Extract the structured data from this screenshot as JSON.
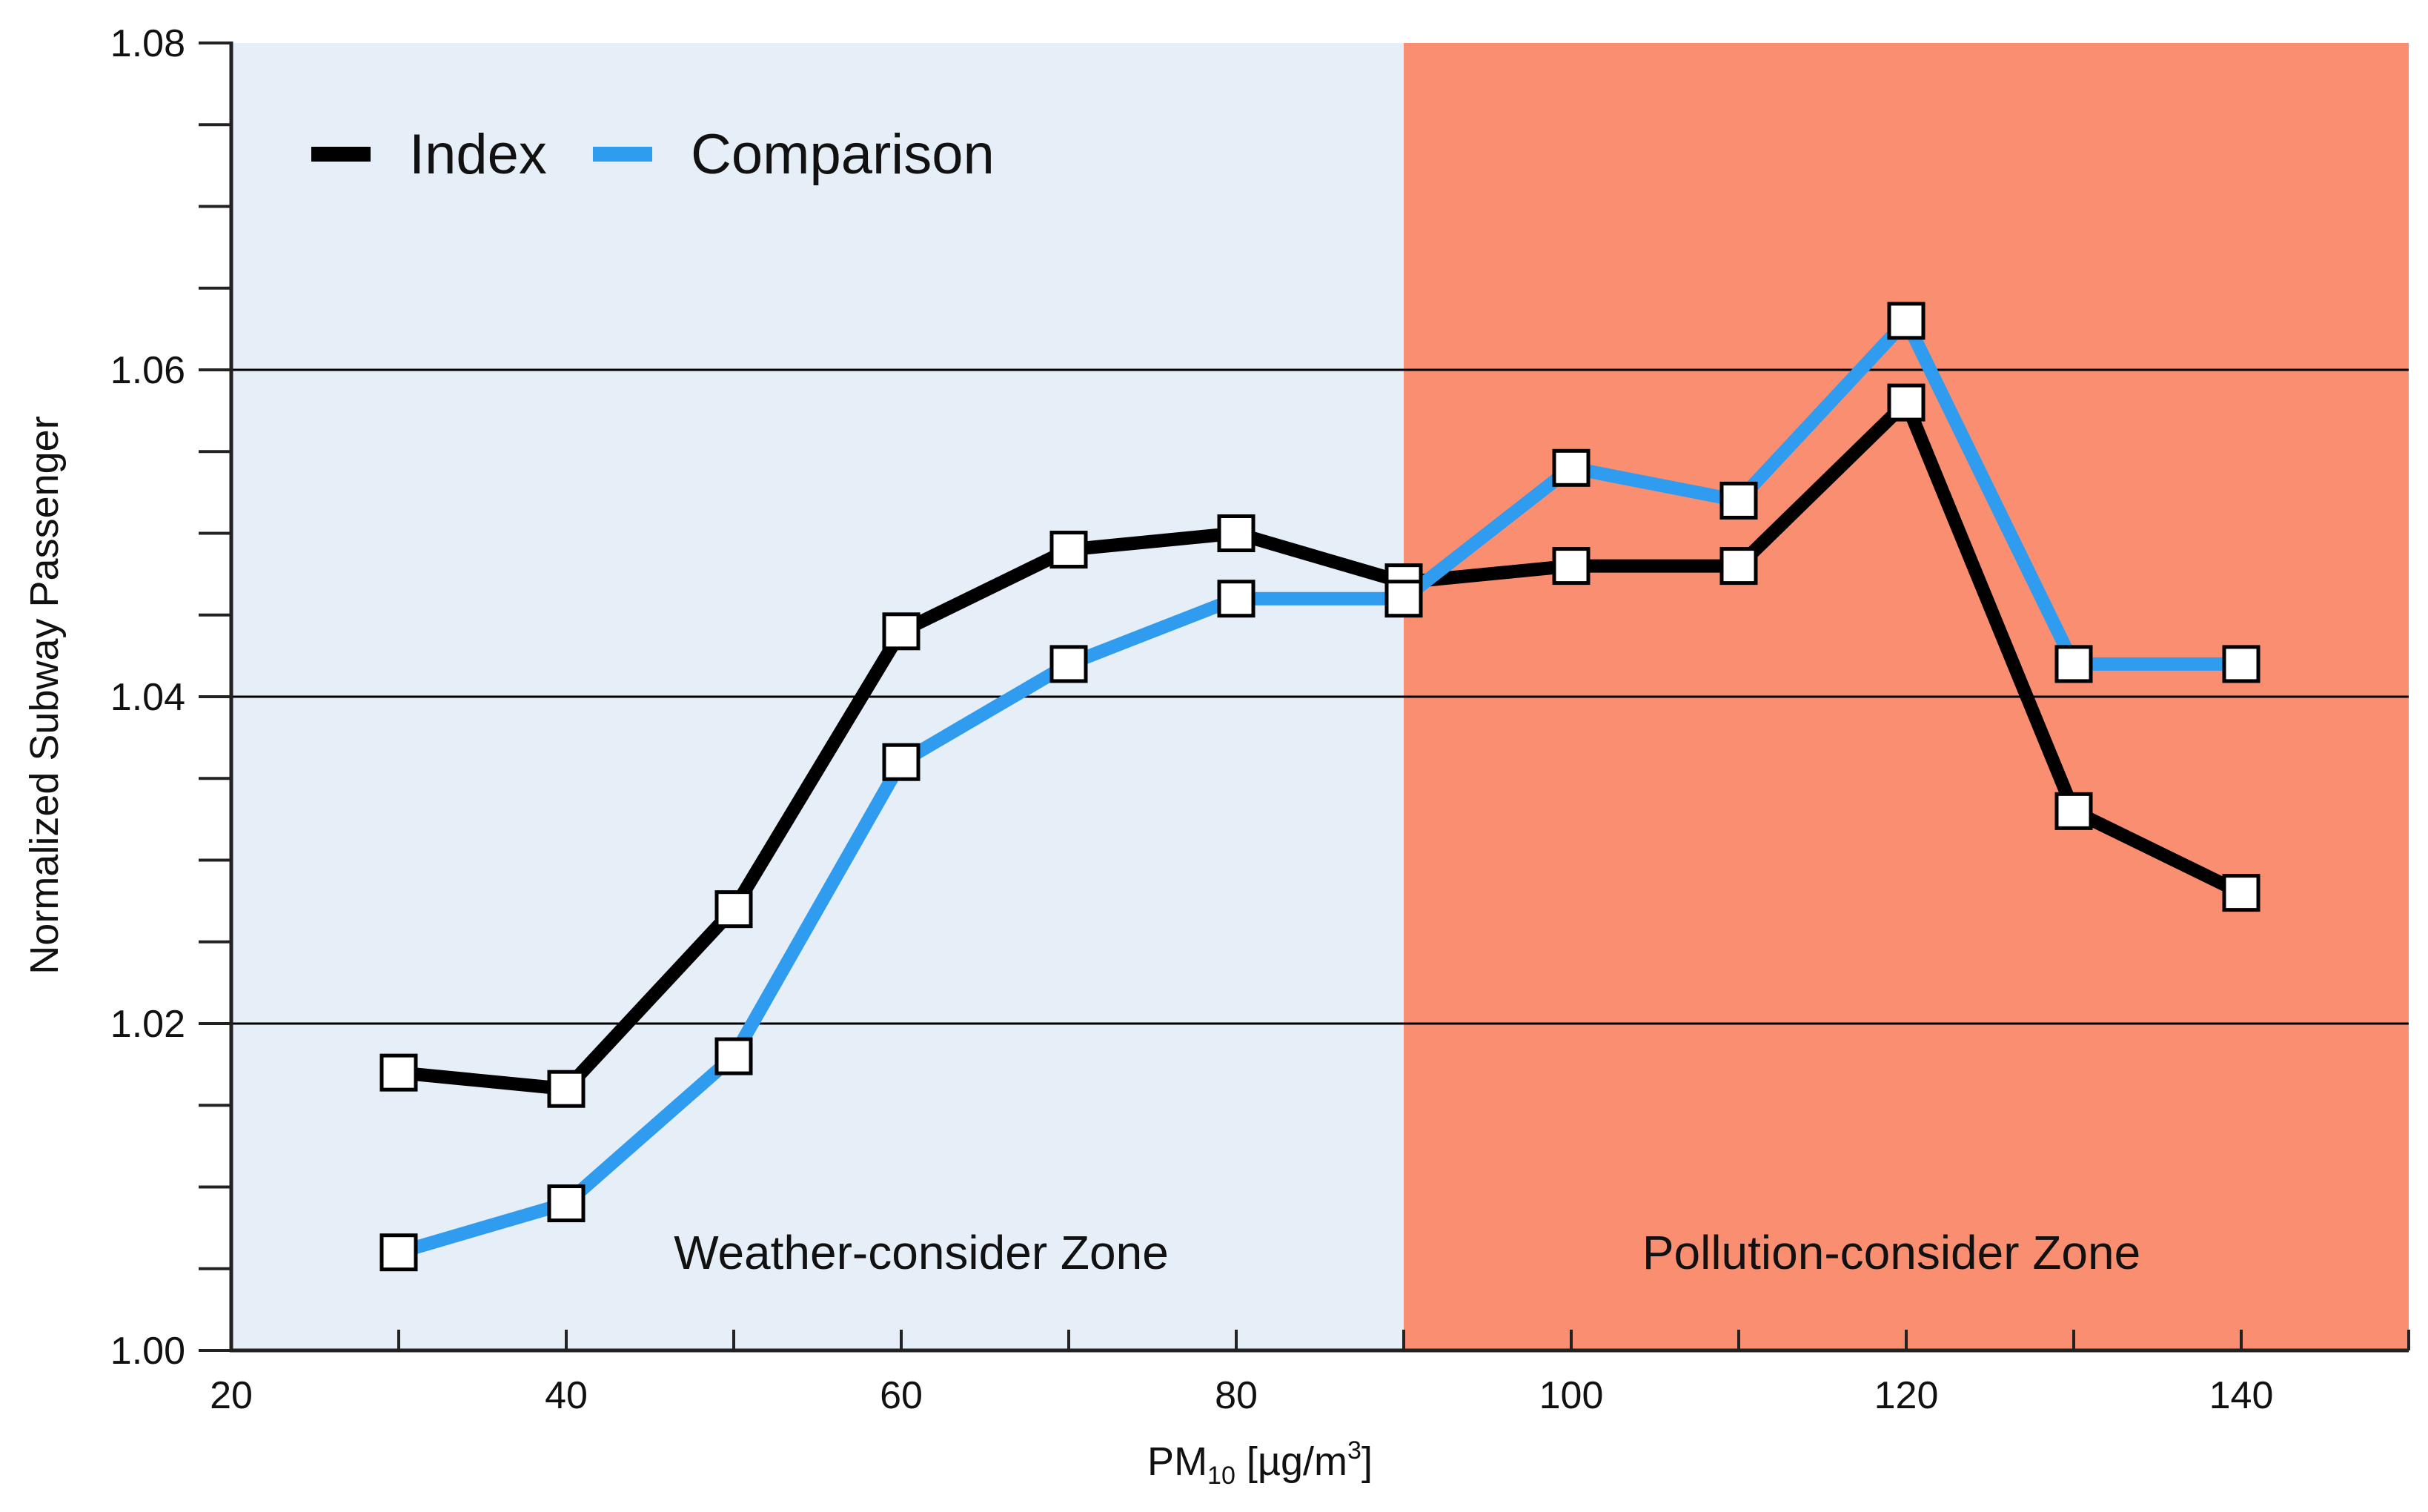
{
  "chart_data": {
    "type": "line",
    "title": "",
    "xlabel": "PM10 [µg/m3]",
    "xlabel_parts": {
      "base": "PM",
      "sub": "10",
      "unit_open": " [µg/m",
      "sup": "3",
      "unit_close": "]"
    },
    "ylabel": "Normalized Subway Passenger",
    "xlim": [
      20,
      150
    ],
    "ylim": [
      1.0,
      1.08
    ],
    "x_ticks": [
      20,
      40,
      60,
      80,
      100,
      120,
      140
    ],
    "x_tick_labels": [
      "20",
      "40",
      "60",
      "80",
      "100",
      "120",
      "140"
    ],
    "y_ticks": [
      1.0,
      1.02,
      1.04,
      1.06,
      1.08
    ],
    "y_tick_labels": [
      "1.00",
      "1.02",
      "1.04",
      "1.06",
      "1.08"
    ],
    "y_minor_step": 0.005,
    "grid": "horizontal at major y ticks",
    "legend_position": "top-left",
    "zones": [
      {
        "label": "Weather-consider Zone",
        "x_from": 20,
        "x_to": 90,
        "color": "#e6eef8"
      },
      {
        "label": "Pollution-consider Zone",
        "x_from": 90,
        "x_to": 150,
        "color": "#f98f70"
      }
    ],
    "x": [
      30,
      40,
      50,
      60,
      70,
      80,
      90,
      100,
      110,
      120,
      130,
      140
    ],
    "series": [
      {
        "name": "Index",
        "color": "#000000",
        "values": [
          1.017,
          1.016,
          1.027,
          1.044,
          1.049,
          1.05,
          1.047,
          1.048,
          1.048,
          1.058,
          1.033,
          1.028
        ]
      },
      {
        "name": "Comparison",
        "color": "#2f9cf0",
        "values": [
          1.006,
          1.009,
          1.018,
          1.036,
          1.042,
          1.046,
          1.046,
          1.054,
          1.052,
          1.063,
          1.042,
          1.042
        ]
      }
    ]
  }
}
